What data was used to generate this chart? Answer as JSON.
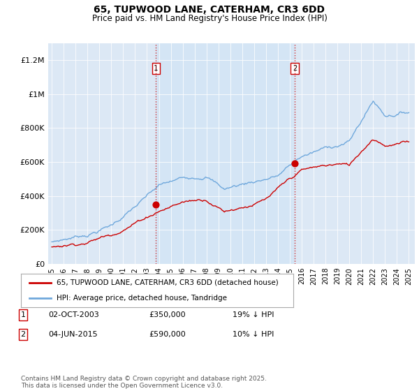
{
  "title": "65, TUPWOOD LANE, CATERHAM, CR3 6DD",
  "subtitle": "Price paid vs. HM Land Registry's House Price Index (HPI)",
  "ylabel_ticks": [
    "£0",
    "£200K",
    "£400K",
    "£600K",
    "£800K",
    "£1M",
    "£1.2M"
  ],
  "ytick_values": [
    0,
    200000,
    400000,
    600000,
    800000,
    1000000,
    1200000
  ],
  "ylim": [
    0,
    1300000
  ],
  "xlim_start": 1994.7,
  "xlim_end": 2025.5,
  "xticks": [
    1995,
    1996,
    1997,
    1998,
    1999,
    2000,
    2001,
    2002,
    2003,
    2004,
    2005,
    2006,
    2007,
    2008,
    2009,
    2010,
    2011,
    2012,
    2013,
    2014,
    2015,
    2016,
    2017,
    2018,
    2019,
    2020,
    2021,
    2022,
    2023,
    2024,
    2025
  ],
  "hpi_color": "#6fa8dc",
  "price_color": "#cc0000",
  "sale1_x": 2003.75,
  "sale1_y": 350000,
  "sale2_x": 2015.42,
  "sale2_y": 590000,
  "legend_house_label": "65, TUPWOOD LANE, CATERHAM, CR3 6DD (detached house)",
  "legend_hpi_label": "HPI: Average price, detached house, Tandridge",
  "table_row1": [
    "1",
    "02-OCT-2003",
    "£350,000",
    "19% ↓ HPI"
  ],
  "table_row2": [
    "2",
    "04-JUN-2015",
    "£590,000",
    "10% ↓ HPI"
  ],
  "footer": "Contains HM Land Registry data © Crown copyright and database right 2025.\nThis data is licensed under the Open Government Licence v3.0.",
  "plot_bg_color": "#dce8f5",
  "shade_color": "#cfe0f0"
}
